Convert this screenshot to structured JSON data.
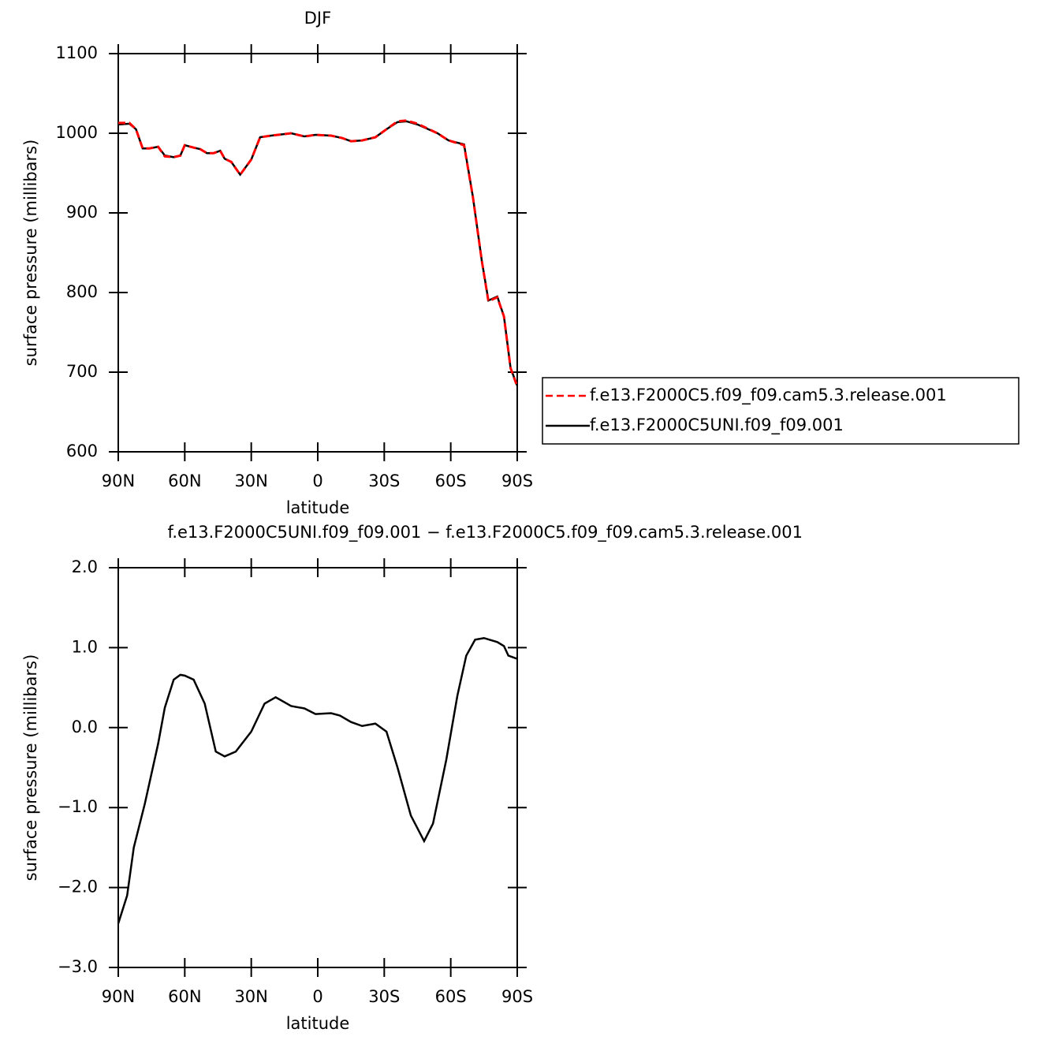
{
  "chart_data": [
    {
      "type": "line",
      "title": "DJF",
      "xlabel": "latitude",
      "ylabel": "surface pressure (millibars)",
      "xlim": [
        90,
        -90
      ],
      "ylim": [
        600,
        1100
      ],
      "xticks": [
        {
          "value": 90,
          "label": "90N"
        },
        {
          "value": 60,
          "label": "60N"
        },
        {
          "value": 30,
          "label": "30N"
        },
        0,
        {
          "value": -30,
          "label": "30S"
        },
        {
          "value": -60,
          "label": "60S"
        },
        {
          "value": -90,
          "label": "90S"
        }
      ],
      "yticks": [
        600,
        700,
        800,
        900,
        1000,
        1100
      ],
      "legend": "right",
      "x": [
        90,
        85,
        82,
        79,
        76,
        72,
        69,
        65,
        62,
        60,
        56,
        53,
        50,
        47,
        44,
        42,
        39,
        35,
        30,
        26,
        21,
        15,
        12,
        6,
        1,
        -6,
        -11,
        -15,
        -20,
        -26,
        -31,
        -36,
        -40,
        -45,
        -54,
        -59,
        -66,
        -70,
        -74,
        -77,
        -81,
        -84,
        -87,
        -90
      ],
      "series": [
        {
          "name": "f.e13.F2000C5.f09_f09.cam5.3.release.001",
          "color": "#ff0000",
          "dash": true,
          "values": [
            1013,
            1013,
            1005,
            981,
            981,
            983,
            971,
            970,
            972,
            985,
            982,
            980,
            975,
            975,
            978,
            968,
            964,
            948,
            967,
            995,
            997,
            999,
            1000,
            996,
            998,
            997,
            994,
            990,
            991,
            995,
            1005,
            1015,
            1016,
            1012,
            1000,
            991,
            985,
            920,
            840,
            789,
            794,
            770,
            705,
            682
          ]
        },
        {
          "name": "f.e13.F2000C5UNI.f09_f09.001",
          "color": "#000000",
          "dash": false,
          "values": [
            1011,
            1012,
            1005,
            981,
            981,
            983,
            972,
            970,
            972,
            985,
            982,
            980,
            975,
            975,
            978,
            968,
            964,
            948,
            967,
            995,
            997,
            999,
            1000,
            996,
            998,
            997,
            994,
            990,
            991,
            995,
            1005,
            1014,
            1015,
            1011,
            1000,
            991,
            986,
            920,
            840,
            790,
            795,
            770,
            705,
            683
          ]
        }
      ]
    },
    {
      "type": "line",
      "title": "f.e13.F2000C5UNI.f09_f09.001 − f.e13.F2000C5.f09_f09.cam5.3.release.001",
      "xlabel": "latitude",
      "ylabel": "surface pressure (millibars)",
      "xlim": [
        90,
        -90
      ],
      "ylim": [
        -3.0,
        2.0
      ],
      "xticks": [
        {
          "value": 90,
          "label": "90N"
        },
        {
          "value": 60,
          "label": "60N"
        },
        {
          "value": 30,
          "label": "30N"
        },
        0,
        {
          "value": -30,
          "label": "30S"
        },
        {
          "value": -60,
          "label": "60S"
        },
        {
          "value": -90,
          "label": "90S"
        }
      ],
      "yticks": [
        {
          "value": -3,
          "label": "−3.0"
        },
        {
          "value": -2,
          "label": "−2.0"
        },
        {
          "value": -1,
          "label": "−1.0"
        },
        {
          "value": 0,
          "label": "0.0"
        },
        {
          "value": 1,
          "label": "1.0"
        },
        {
          "value": 2,
          "label": "2.0"
        }
      ],
      "x": [
        90,
        86,
        83,
        78,
        72,
        69,
        65,
        62,
        60,
        56,
        51,
        46,
        42,
        37,
        30,
        24,
        19,
        12,
        6,
        1,
        -6,
        -10,
        -15,
        -20,
        -26,
        -31,
        -36,
        -42,
        -48,
        -52,
        -58,
        -63,
        -67,
        -71,
        -75,
        -81,
        -84,
        -86,
        -90
      ],
      "series": [
        {
          "name": null,
          "color": "#000000",
          "dash": false,
          "values": [
            -2.45,
            -2.1,
            -1.5,
            -0.95,
            -0.2,
            0.25,
            0.6,
            0.66,
            0.65,
            0.6,
            0.3,
            -0.3,
            -0.36,
            -0.3,
            -0.05,
            0.3,
            0.38,
            0.27,
            0.24,
            0.17,
            0.18,
            0.15,
            0.07,
            0.02,
            0.05,
            -0.05,
            -0.5,
            -1.1,
            -1.42,
            -1.2,
            -0.4,
            0.4,
            0.9,
            1.1,
            1.12,
            1.07,
            1.02,
            0.9,
            0.86
          ]
        }
      ]
    }
  ]
}
